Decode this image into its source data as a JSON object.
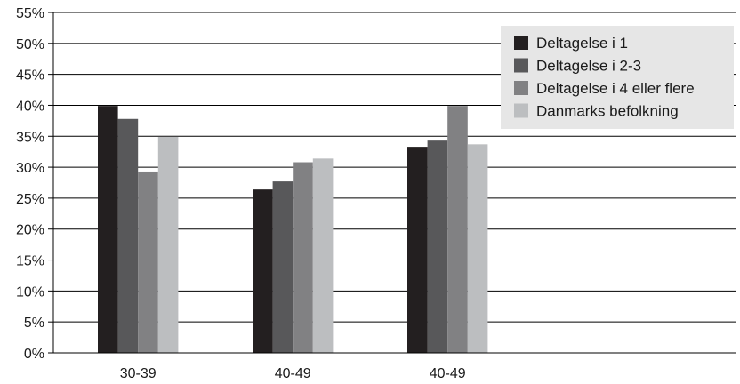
{
  "chart_data": {
    "type": "bar",
    "categories": [
      "30-39",
      "40-49",
      "40-49"
    ],
    "series": [
      {
        "name": "Deltagelse i 1",
        "color": "#231f20",
        "values": [
          39.9,
          26.4,
          33.3
        ]
      },
      {
        "name": "Deltagelse i 2-3",
        "color": "#58585a",
        "values": [
          37.8,
          27.7,
          34.3
        ]
      },
      {
        "name": "Deltagelse i 4 eller flere",
        "color": "#818183",
        "values": [
          29.3,
          30.8,
          39.9
        ]
      },
      {
        "name": "Danmarks befolkning",
        "color": "#bcbec0",
        "values": [
          34.9,
          31.4,
          33.7
        ]
      }
    ],
    "y_ticks": [
      "0%",
      "5%",
      "10%",
      "15%",
      "20%",
      "25%",
      "30%",
      "35%",
      "40%",
      "45%",
      "50%",
      "55%"
    ],
    "ylim": [
      0,
      55
    ],
    "y_step": 5,
    "grid": true,
    "legend_position": "top-right",
    "legend_background": "#e6e6e6"
  }
}
